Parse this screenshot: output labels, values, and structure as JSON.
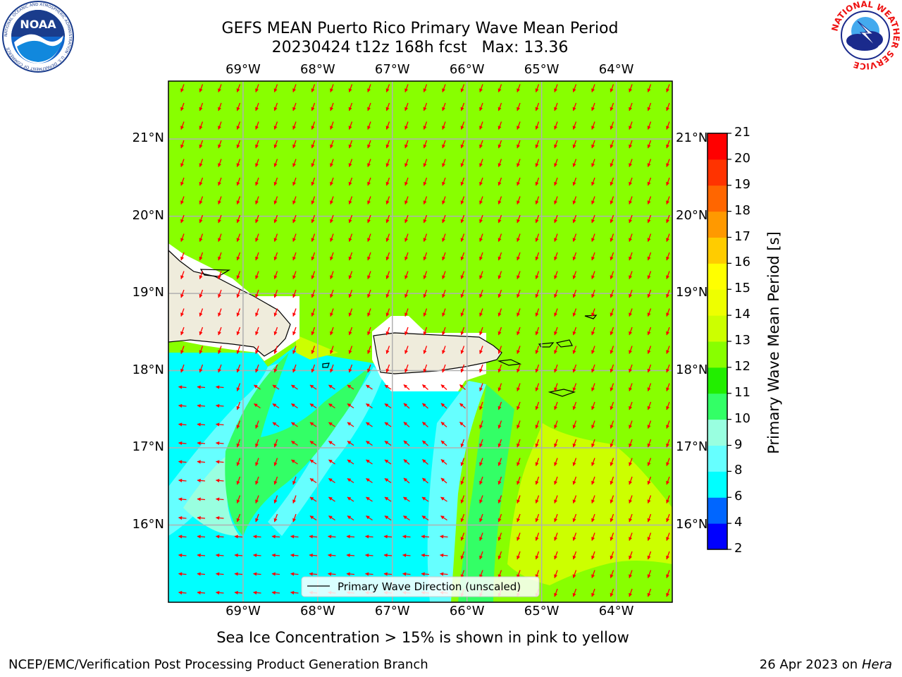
{
  "title": {
    "line1": "GEFS MEAN Puerto Rico Primary Wave Mean Period",
    "line2": "20230424 t12z 168h fcst   Max: 13.36"
  },
  "logos": {
    "noaa": {
      "text": "NOAA",
      "ring_text": "NATIONAL OCEANIC AND ATMOSPHERIC ADMINISTRATION · U.S. DEPARTMENT OF COMMERCE",
      "icon": "noaa-logo-icon"
    },
    "nws": {
      "ring_text": "NATIONAL WEATHER SERVICE",
      "icon": "nws-logo-icon"
    }
  },
  "chart_data": {
    "type": "heatmap",
    "x_ticks": [
      "69°W",
      "68°W",
      "67°W",
      "66°W",
      "65°W",
      "64°W"
    ],
    "x_tick_values": [
      -69,
      -68,
      -67,
      -66,
      -65,
      -64
    ],
    "y_ticks": [
      "21°N",
      "20°N",
      "19°N",
      "18°N",
      "17°N",
      "16°N"
    ],
    "y_tick_values": [
      21,
      20,
      19,
      18,
      17,
      16
    ],
    "xlim": [
      -70.0,
      -63.25
    ],
    "ylim": [
      15.0,
      21.75
    ],
    "grid": true,
    "colorbar": {
      "label": "Primary Wave Mean Period [s]",
      "levels": [
        2,
        4,
        6,
        8,
        9,
        10,
        11,
        12,
        13,
        14,
        15,
        16,
        17,
        18,
        19,
        20,
        21
      ],
      "colors": [
        "#0000ff",
        "#0066ff",
        "#00ffff",
        "#66ffff",
        "#99ffe0",
        "#33ff66",
        "#22ee00",
        "#88ff00",
        "#ccff00",
        "#eeff00",
        "#ffff00",
        "#ffcc00",
        "#ff9900",
        "#ff6600",
        "#ff3300",
        "#ff0000"
      ]
    },
    "legend": {
      "label": "Primary Wave Direction (unscaled)",
      "position": "bottom-center"
    },
    "arrow_color": "#ff0000",
    "land_color": "#efecdc"
  },
  "subtitle": "Sea Ice Concentration > 15% is shown in pink to yellow",
  "footer": {
    "left": "NCEP/EMC/Verification Post Processing Product Generation Branch",
    "right_prefix": "26 Apr 2023 on ",
    "right_machine": "Hera"
  }
}
